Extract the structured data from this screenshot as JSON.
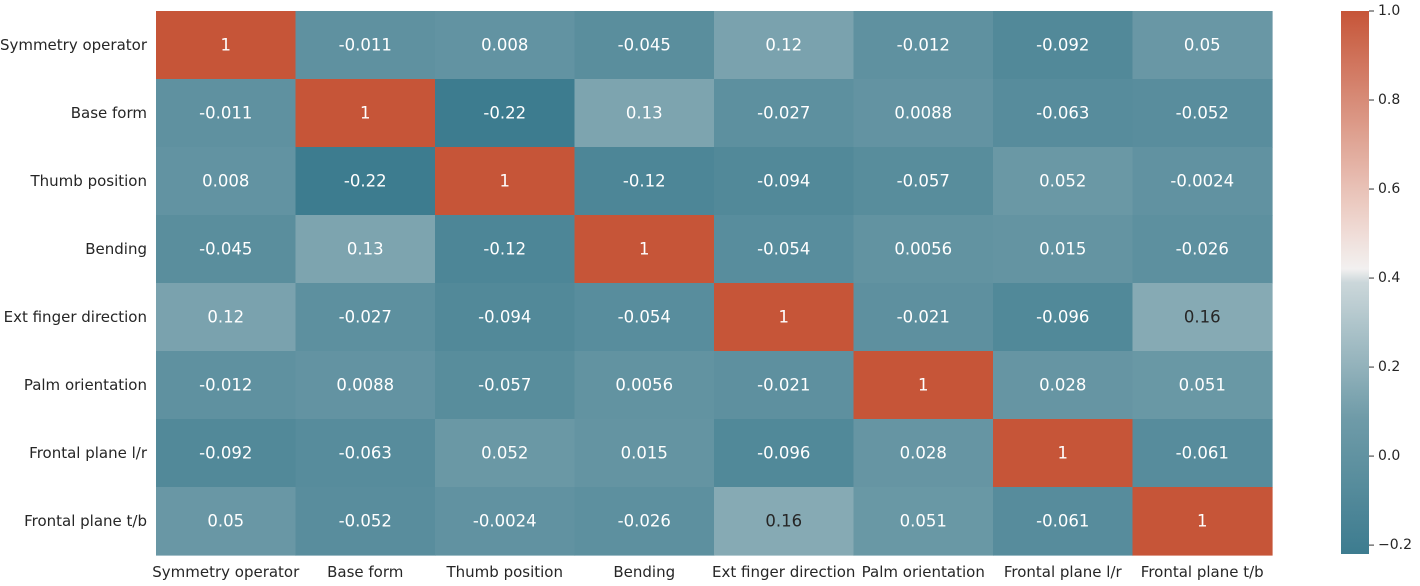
{
  "chart_data": {
    "type": "heatmap",
    "title": "",
    "xlabel": "",
    "ylabel": "",
    "row_labels": [
      "Symmetry operator",
      "Base form",
      "Thumb position",
      "Bending",
      "Ext finger direction",
      "Palm orientation",
      "Frontal plane l/r",
      "Frontal plane t/b"
    ],
    "col_labels": [
      "Symmetry operator",
      "Base form",
      "Thumb position",
      "Bending",
      "Ext finger direction",
      "Palm orientation",
      "Frontal plane l/r",
      "Frontal plane t/b"
    ],
    "values": [
      [
        1,
        -0.011,
        0.008,
        -0.045,
        0.12,
        -0.012,
        -0.092,
        0.05
      ],
      [
        -0.011,
        1,
        -0.22,
        0.13,
        -0.027,
        0.0088,
        -0.063,
        -0.052
      ],
      [
        0.008,
        -0.22,
        1,
        -0.12,
        -0.094,
        -0.057,
        0.052,
        -0.0024
      ],
      [
        -0.045,
        0.13,
        -0.12,
        1,
        -0.054,
        0.0056,
        0.015,
        -0.026
      ],
      [
        0.12,
        -0.027,
        -0.094,
        -0.054,
        1,
        -0.021,
        -0.096,
        0.16
      ],
      [
        -0.012,
        0.0088,
        -0.057,
        0.0056,
        -0.021,
        1,
        0.028,
        0.051
      ],
      [
        -0.092,
        -0.063,
        0.052,
        0.015,
        -0.096,
        0.028,
        1,
        -0.061
      ],
      [
        0.05,
        -0.052,
        -0.0024,
        -0.026,
        0.16,
        0.051,
        -0.061,
        1
      ]
    ],
    "cell_labels": [
      [
        "1",
        "-0.011",
        "0.008",
        "-0.045",
        "0.12",
        "-0.012",
        "-0.092",
        "0.05"
      ],
      [
        "-0.011",
        "1",
        "-0.22",
        "0.13",
        "-0.027",
        "0.0088",
        "-0.063",
        "-0.052"
      ],
      [
        "0.008",
        "-0.22",
        "1",
        "-0.12",
        "-0.094",
        "-0.057",
        "0.052",
        "-0.0024"
      ],
      [
        "-0.045",
        "0.13",
        "-0.12",
        "1",
        "-0.054",
        "0.0056",
        "0.015",
        "-0.026"
      ],
      [
        "0.12",
        "-0.027",
        "-0.094",
        "-0.054",
        "1",
        "-0.021",
        "-0.096",
        "0.16"
      ],
      [
        "-0.012",
        "0.0088",
        "-0.057",
        "0.0056",
        "-0.021",
        "1",
        "0.028",
        "0.051"
      ],
      [
        "-0.092",
        "-0.063",
        "0.052",
        "0.015",
        "-0.096",
        "0.028",
        "1",
        "-0.061"
      ],
      [
        "0.05",
        "-0.052",
        "-0.0024",
        "-0.026",
        "0.16",
        "0.051",
        "-0.061",
        "1"
      ]
    ],
    "colorbar": {
      "range": [
        -0.22,
        1
      ],
      "ticks": [
        1.0,
        0.8,
        0.6,
        0.4,
        0.2,
        0.0,
        -0.2
      ],
      "tick_labels": [
        "1.0",
        "0.8",
        "0.6",
        "0.4",
        "0.2",
        "0.0",
        "−0.2"
      ],
      "colormap": "diverging teal-white-orange",
      "colors": {
        "low": "#3d7c8f",
        "mid": "#f2f2f2",
        "high": "#c65538"
      }
    },
    "grid": false,
    "legend": "colorbar-right"
  }
}
